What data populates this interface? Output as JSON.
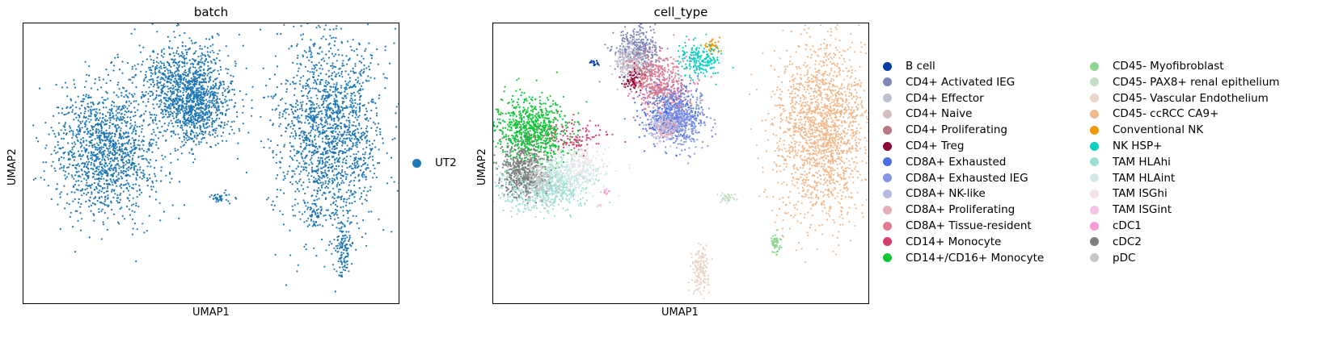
{
  "chart_data": [
    {
      "type": "scatter",
      "title": "batch",
      "xlabel": "UMAP1",
      "ylabel": "UMAP2",
      "grid": false,
      "xticks": [],
      "yticks": [],
      "legend": {
        "placement": "right",
        "entries": [
          {
            "name": "UT2",
            "color": "#1f77b4"
          }
        ]
      },
      "series": [
        {
          "name": "UT2",
          "color": "#1f77b4",
          "clusters": [
            {
              "x": [
                0.22,
                0.43,
                0.81,
                0.52,
                0.46,
                0.77,
                0.85
              ],
              "y": [
                0.55,
                0.78,
                0.62,
                0.38,
                0.68,
                0.32,
                0.2
              ]
            }
          ]
        }
      ]
    },
    {
      "type": "scatter",
      "title": "cell_type",
      "xlabel": "UMAP1",
      "ylabel": "UMAP2",
      "grid": false,
      "xticks": [],
      "yticks": [],
      "legend": {
        "placement": "right",
        "columns": 2
      },
      "series": [
        {
          "name": "B cell",
          "color": "#023fa5",
          "clusters": [
            {
              "x": [
                0.27
              ],
              "y": [
                0.86
              ]
            }
          ]
        },
        {
          "name": "CD4+ Activated IEG",
          "color": "#7d87b9",
          "clusters": [
            {
              "x": [
                0.38
              ],
              "y": [
                0.9
              ]
            }
          ]
        },
        {
          "name": "CD4+ Effector",
          "color": "#bec1d4",
          "clusters": [
            {
              "x": [
                0.36
              ],
              "y": [
                0.87
              ]
            }
          ]
        },
        {
          "name": "CD4+ Naive",
          "color": "#d6bcc0",
          "clusters": [
            {
              "x": [
                0.37
              ],
              "y": [
                0.85
              ]
            }
          ]
        },
        {
          "name": "CD4+ Proliferating",
          "color": "#bb7784",
          "clusters": [
            {
              "x": [
                0.4
              ],
              "y": [
                0.82
              ]
            }
          ]
        },
        {
          "name": "CD4+ Treg",
          "color": "#8e063b",
          "clusters": [
            {
              "x": [
                0.37
              ],
              "y": [
                0.8
              ]
            }
          ]
        },
        {
          "name": "CD8A+ Exhausted",
          "color": "#4a6fe3",
          "clusters": [
            {
              "x": [
                0.47
              ],
              "y": [
                0.68
              ]
            }
          ]
        },
        {
          "name": "CD8A+ Exhausted IEG",
          "color": "#8595e1",
          "clusters": [
            {
              "x": [
                0.5
              ],
              "y": [
                0.66
              ]
            }
          ]
        },
        {
          "name": "CD8A+ NK-like",
          "color": "#b5bbe3",
          "clusters": [
            {
              "x": [
                0.45
              ],
              "y": [
                0.64
              ]
            }
          ]
        },
        {
          "name": "CD8A+ Proliferating",
          "color": "#e6afb9",
          "clusters": [
            {
              "x": [
                0.46
              ],
              "y": [
                0.62
              ]
            }
          ]
        },
        {
          "name": "CD8A+ Tissue-resident",
          "color": "#e07b91",
          "clusters": [
            {
              "x": [
                0.44
              ],
              "y": [
                0.79
              ]
            }
          ]
        },
        {
          "name": "CD14+ Monocyte",
          "color": "#d33f6a",
          "clusters": [
            {
              "x": [
                0.2
              ],
              "y": [
                0.6
              ]
            }
          ]
        },
        {
          "name": "CD14+/CD16+ Monocyte",
          "color": "#11c638",
          "clusters": [
            {
              "x": [
                0.1
              ],
              "y": [
                0.62
              ]
            }
          ]
        },
        {
          "name": "CD45- Myofibroblast",
          "color": "#8dd593",
          "clusters": [
            {
              "x": [
                0.75
              ],
              "y": [
                0.22
              ]
            }
          ]
        },
        {
          "name": "CD45- PAX8+ renal epithelium",
          "color": "#c6dec7",
          "clusters": [
            {
              "x": [
                0.62
              ],
              "y": [
                0.38
              ]
            }
          ]
        },
        {
          "name": "CD45- Vascular Endothelium",
          "color": "#ead3c6",
          "clusters": [
            {
              "x": [
                0.55
              ],
              "y": [
                0.12
              ]
            }
          ]
        },
        {
          "name": "CD45- ccRCC CA9+",
          "color": "#f0b98d",
          "clusters": [
            {
              "x": [
                0.87
              ],
              "y": [
                0.62
              ]
            }
          ]
        },
        {
          "name": "Conventional NK",
          "color": "#ef9708",
          "clusters": [
            {
              "x": [
                0.58
              ],
              "y": [
                0.92
              ]
            }
          ]
        },
        {
          "name": "NK HSP+",
          "color": "#0fcfc0",
          "clusters": [
            {
              "x": [
                0.55
              ],
              "y": [
                0.87
              ]
            }
          ]
        },
        {
          "name": "TAM HLAhi",
          "color": "#9cded6",
          "clusters": [
            {
              "x": [
                0.13
              ],
              "y": [
                0.42
              ]
            }
          ]
        },
        {
          "name": "TAM HLAint",
          "color": "#d5eae7",
          "clusters": [
            {
              "x": [
                0.2
              ],
              "y": [
                0.48
              ]
            }
          ]
        },
        {
          "name": "TAM ISGhi",
          "color": "#f3e1eb",
          "clusters": [
            {
              "x": [
                0.24
              ],
              "y": [
                0.5
              ]
            }
          ]
        },
        {
          "name": "TAM ISGint",
          "color": "#f6c4e1",
          "clusters": [
            {
              "x": [
                0.28
              ],
              "y": [
                0.35
              ]
            }
          ]
        },
        {
          "name": "cDC1",
          "color": "#f79cd4",
          "clusters": [
            {
              "x": [
                0.3
              ],
              "y": [
                0.4
              ]
            }
          ]
        },
        {
          "name": "cDC2",
          "color": "#7f7f7f",
          "clusters": [
            {
              "x": [
                0.08
              ],
              "y": [
                0.48
              ]
            }
          ]
        },
        {
          "name": "pDC",
          "color": "#c7c7c7",
          "clusters": [
            {
              "x": [
                0.12
              ],
              "y": [
                0.45
              ]
            }
          ]
        }
      ]
    }
  ]
}
